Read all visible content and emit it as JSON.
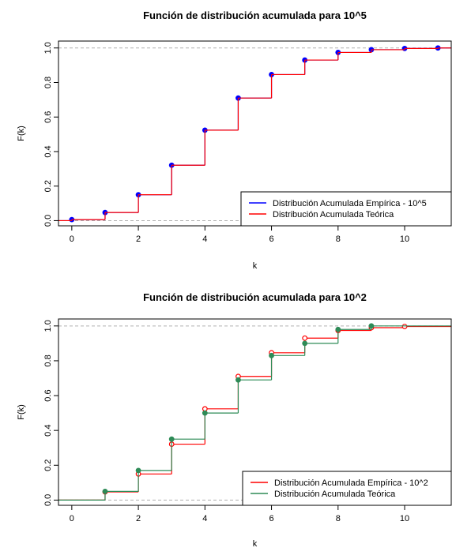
{
  "chart_data": [
    {
      "type": "line",
      "step": true,
      "title": "Función de distribución acumulada para 10^5",
      "xlabel": "k",
      "ylabel": "F(k)",
      "xlim": [
        -0.4,
        11.4
      ],
      "ylim": [
        -0.03,
        1.04
      ],
      "xticks": [
        "0",
        "2",
        "4",
        "6",
        "8",
        "10"
      ],
      "yticks": [
        "0.0",
        "0.2",
        "0.4",
        "0.6",
        "0.8",
        "1.0"
      ],
      "reference_lines": [
        0,
        1
      ],
      "legend_position": "bottom-right",
      "series": [
        {
          "name": "Distribución Acumulada Empírica - 10^5",
          "color": "#0000ff",
          "marker": "filled",
          "x": [
            0,
            1,
            2,
            3,
            4,
            5,
            6,
            7,
            8,
            9,
            10,
            11
          ],
          "y": [
            0.006,
            0.047,
            0.15,
            0.321,
            0.524,
            0.71,
            0.846,
            0.93,
            0.974,
            0.99,
            0.997,
            1.0
          ]
        },
        {
          "name": "Distribución Acumulada Teórica",
          "color": "#ff0000",
          "marker": "none",
          "x": [
            0,
            1,
            2,
            3,
            4,
            5,
            6,
            7,
            8,
            9,
            10,
            11
          ],
          "y": [
            0.006,
            0.047,
            0.15,
            0.321,
            0.524,
            0.71,
            0.846,
            0.93,
            0.974,
            0.99,
            0.997,
            1.0
          ]
        }
      ]
    },
    {
      "type": "line",
      "step": true,
      "title": "Función de distribución acumulada para 10^2",
      "xlabel": "k",
      "ylabel": "F(k)",
      "xlim": [
        -0.4,
        11.4
      ],
      "ylim": [
        -0.03,
        1.04
      ],
      "xticks": [
        "0",
        "2",
        "4",
        "6",
        "8",
        "10"
      ],
      "yticks": [
        "0.0",
        "0.2",
        "0.4",
        "0.6",
        "0.8",
        "1.0"
      ],
      "reference_lines": [
        0,
        1
      ],
      "legend_position": "bottom-right",
      "series": [
        {
          "name": "Distribución Acumulada Empírica - 10^2",
          "color": "#ff0000",
          "marker": "open",
          "x": [
            1,
            2,
            3,
            4,
            5,
            6,
            7,
            8,
            9,
            10
          ],
          "y": [
            0.047,
            0.15,
            0.321,
            0.524,
            0.71,
            0.846,
            0.93,
            0.974,
            0.99,
            0.997
          ]
        },
        {
          "name": "Distribución Acumulada Teórica",
          "color": "#2e8b57",
          "marker": "filled",
          "x": [
            1,
            2,
            3,
            4,
            5,
            6,
            7,
            8,
            9
          ],
          "y": [
            0.05,
            0.17,
            0.35,
            0.5,
            0.69,
            0.83,
            0.9,
            0.98,
            1.0
          ]
        }
      ]
    }
  ]
}
